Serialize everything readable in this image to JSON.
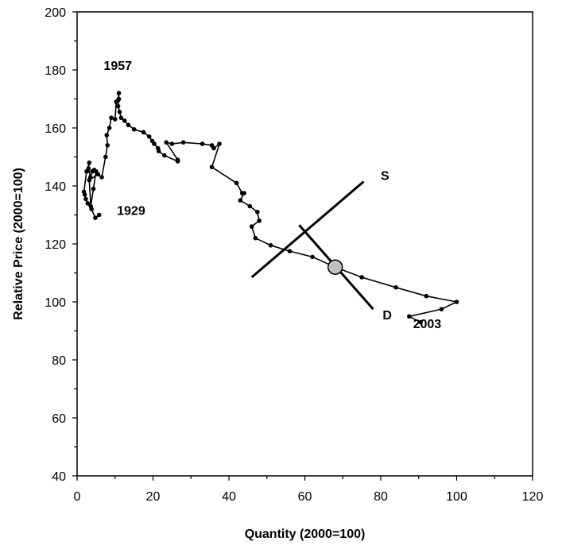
{
  "chart_data": {
    "type": "scatter",
    "title": "",
    "xlabel": "Quantity (2000=100)",
    "ylabel": "Relative Price (2000=100)",
    "xlim": [
      0,
      120
    ],
    "ylim": [
      40,
      200
    ],
    "xticks": [
      0,
      20,
      40,
      60,
      80,
      100,
      120
    ],
    "yticks": [
      40,
      60,
      80,
      100,
      120,
      140,
      160,
      180,
      200
    ],
    "grid": false,
    "legend": "none",
    "series": [
      {
        "points": [
          [
            5.8,
            130
          ],
          [
            4.8,
            129
          ],
          [
            3.8,
            132
          ],
          [
            2.8,
            134
          ],
          [
            2.3,
            135.5
          ],
          [
            2.0,
            137
          ],
          [
            1.8,
            138
          ],
          [
            2.5,
            145
          ],
          [
            3.2,
            148
          ],
          [
            3.0,
            146
          ],
          [
            3.5,
            143
          ],
          [
            4.0,
            145
          ],
          [
            4.5,
            145.5
          ],
          [
            5.0,
            145
          ],
          [
            4.3,
            139
          ],
          [
            3.6,
            133
          ],
          [
            3.2,
            142
          ],
          [
            5.5,
            144
          ],
          [
            6.5,
            143
          ],
          [
            7.5,
            150
          ],
          [
            8.0,
            154
          ],
          [
            7.8,
            157.5
          ],
          [
            8.5,
            160
          ],
          [
            9.0,
            163.5
          ],
          [
            10.0,
            163
          ],
          [
            10.3,
            169
          ],
          [
            10.8,
            169.5
          ],
          [
            11.0,
            172
          ],
          [
            11.0,
            170
          ],
          [
            10.8,
            167.5
          ],
          [
            11.2,
            165.5
          ],
          [
            11.6,
            163.5
          ],
          [
            12.5,
            162.5
          ],
          [
            13.5,
            161
          ],
          [
            15.0,
            159.5
          ],
          [
            17.5,
            158.5
          ],
          [
            19.0,
            157
          ],
          [
            19.8,
            155.5
          ],
          [
            20.3,
            154.5
          ],
          [
            21.3,
            153
          ],
          [
            21.5,
            152
          ],
          [
            23.0,
            150.5
          ],
          [
            26.5,
            148.5
          ],
          [
            26.5,
            149
          ],
          [
            23.5,
            155
          ],
          [
            25.0,
            154.5
          ],
          [
            28.0,
            155
          ],
          [
            33.0,
            154.5
          ],
          [
            35.5,
            154
          ],
          [
            36.0,
            153
          ],
          [
            37.5,
            154.5
          ],
          [
            35.5,
            146.5
          ],
          [
            42.0,
            141
          ],
          [
            43.5,
            137.5
          ],
          [
            44.0,
            137.5
          ],
          [
            43.0,
            135
          ],
          [
            45.5,
            133
          ],
          [
            47.5,
            131
          ],
          [
            48.0,
            128
          ],
          [
            46.0,
            126
          ],
          [
            47.0,
            122
          ],
          [
            51.0,
            119.5
          ],
          [
            56.0,
            117.5
          ],
          [
            62.0,
            115.5
          ],
          [
            68.0,
            112
          ],
          [
            75.0,
            108.5
          ],
          [
            84.0,
            105
          ],
          [
            92.0,
            102
          ],
          [
            100.0,
            100
          ],
          [
            96.0,
            97.5
          ],
          [
            87.5,
            95
          ],
          [
            90.5,
            93
          ]
        ]
      }
    ],
    "supply_line": [
      [
        46,
        108.5
      ],
      [
        75.5,
        141.5
      ]
    ],
    "demand_line": [
      [
        58.5,
        126.5
      ],
      [
        78,
        97.5
      ]
    ],
    "equilibrium_point": [
      68,
      112
    ],
    "annotations": [
      {
        "text": "1957",
        "x": 7,
        "y": 180
      },
      {
        "text": "1929",
        "x": 10.5,
        "y": 130
      },
      {
        "text": "S",
        "x": 80,
        "y": 142
      },
      {
        "text": "D",
        "x": 80.5,
        "y": 94
      },
      {
        "text": "2003",
        "x": 88.5,
        "y": 91
      }
    ]
  }
}
